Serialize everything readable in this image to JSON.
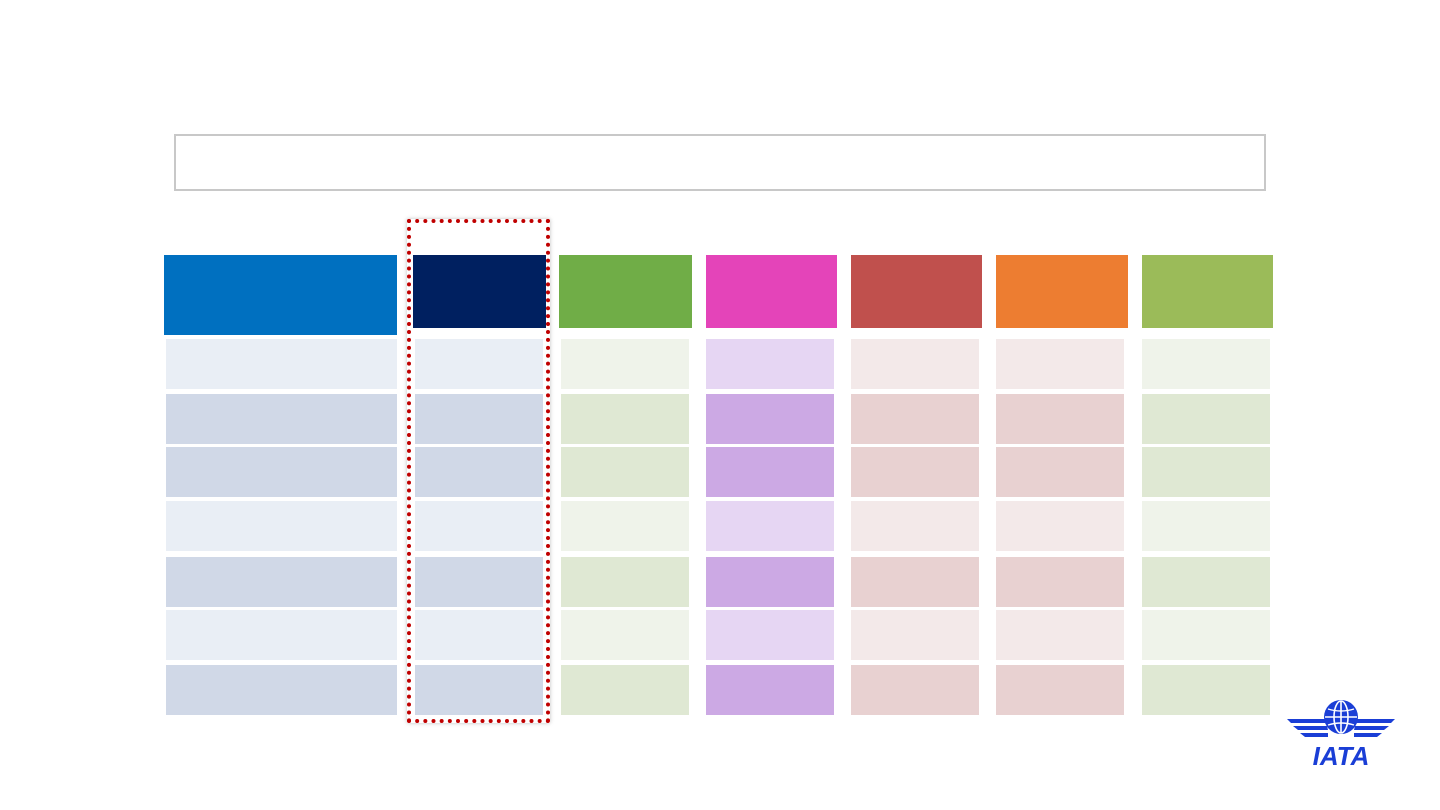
{
  "slide": {
    "title": ""
  },
  "colors": {
    "highlight_border": "#c00000",
    "logo_blue": "#1a3ed6"
  },
  "table": {
    "columns": [
      {
        "key": "col-label",
        "header": "",
        "header_color": "#0070c0",
        "light": "#e9eef5",
        "dark": "#d0d8e7"
      },
      {
        "key": "col-2",
        "header": "",
        "header_color": "#002060",
        "light": "#e9eef5",
        "dark": "#d0d8e7"
      },
      {
        "key": "col-3",
        "header": "",
        "header_color": "#70ad47",
        "light": "#eff3ea",
        "dark": "#dfe8d3"
      },
      {
        "key": "col-4",
        "header": "",
        "header_color": "#e444b9",
        "light": "#e6d6f3",
        "dark": "#cca9e4"
      },
      {
        "key": "col-5",
        "header": "",
        "header_color": "#c0504d",
        "light": "#f3e9e9",
        "dark": "#e8d1d1"
      },
      {
        "key": "col-6",
        "header": "",
        "header_color": "#ed7d31",
        "light": "#f3e9e9",
        "dark": "#e8d1d1"
      },
      {
        "key": "col-7",
        "header": "",
        "header_color": "#9bbb59",
        "light": "#eff3ea",
        "dark": "#dfe8d3"
      }
    ],
    "row_shades": [
      "light",
      "dark",
      "dark",
      "light",
      "dark",
      "light",
      "dark"
    ],
    "rows": [
      [
        "",
        "",
        "",
        "",
        "",
        "",
        ""
      ],
      [
        "",
        "",
        "",
        "",
        "",
        "",
        ""
      ],
      [
        "",
        "",
        "",
        "",
        "",
        "",
        ""
      ],
      [
        "",
        "",
        "",
        "",
        "",
        "",
        ""
      ],
      [
        "",
        "",
        "",
        "",
        "",
        "",
        ""
      ],
      [
        "",
        "",
        "",
        "",
        "",
        "",
        ""
      ],
      [
        "",
        "",
        "",
        "",
        "",
        "",
        ""
      ]
    ]
  },
  "logo": {
    "icon": "iata-logo-icon",
    "text": "IATA"
  }
}
